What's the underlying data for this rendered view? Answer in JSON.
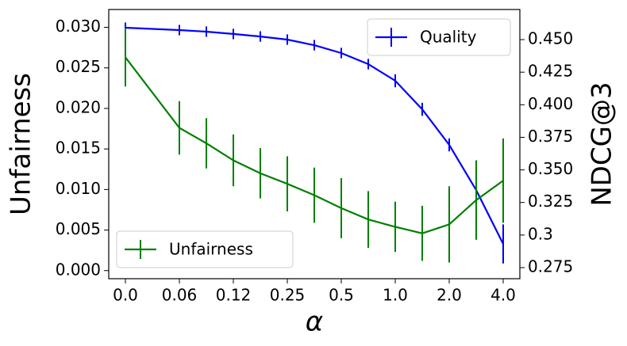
{
  "chart_data": {
    "type": "line",
    "categories": [
      "0.0",
      null,
      "0.06",
      null,
      "0.12",
      null,
      "0.25",
      null,
      "0.5",
      null,
      "1.0",
      null,
      "2.0",
      null,
      "4.0"
    ],
    "xlabel": "α",
    "ylabel": "Unfairness",
    "y2label": "NDCG@3",
    "ylim": [
      -0.001,
      0.0322
    ],
    "yticks": [
      {
        "value": 0,
        "label": "0.000"
      },
      {
        "value": 0.005,
        "label": "0.005"
      },
      {
        "value": 0.01,
        "label": "0.010"
      },
      {
        "value": 0.015,
        "label": "0.015"
      },
      {
        "value": 0.02,
        "label": "0.020"
      },
      {
        "value": 0.025,
        "label": "0.025"
      },
      {
        "value": 0.03,
        "label": "0.030"
      }
    ],
    "y2lim": [
      0.2665,
      0.4731
    ],
    "y2ticks": [
      {
        "value": 0.275,
        "label": "0.275"
      },
      0.3,
      {
        "value": 0.325,
        "label": "0.325"
      },
      {
        "value": 0.35,
        "label": "0.350"
      },
      {
        "value": 0.375,
        "label": "0.375"
      },
      {
        "value": 0.4,
        "label": "0.400"
      },
      {
        "value": 0.425,
        "label": "0.425"
      },
      {
        "value": 0.45,
        "label": "0.450"
      }
    ],
    "series": [
      {
        "name": "Quality",
        "color": "#0000ff",
        "axis": "y2",
        "legend": "upper right",
        "values": [
          0.4591,
          null,
          0.4573,
          0.4561,
          0.4543,
          0.4524,
          0.45,
          0.4457,
          0.4397,
          0.4312,
          0.4184,
          0.3965,
          0.3692,
          0.3345,
          0.2932
        ],
        "errors": [
          0.004,
          null,
          0.004,
          0.004,
          0.004,
          0.004,
          0.004,
          0.004,
          0.004,
          0.004,
          0.005,
          0.005,
          0.005,
          0.007,
          0.015
        ]
      },
      {
        "name": "Unfairness",
        "color": "#008000",
        "axis": "y",
        "legend": "lower left",
        "values": [
          0.0263,
          null,
          0.0176,
          0.0157,
          0.0136,
          0.012,
          0.0107,
          0.0093,
          0.0077,
          0.0063,
          0.0054,
          0.0046,
          0.0057,
          0.0087,
          0.0111
        ],
        "errors": [
          0.0036,
          null,
          0.0033,
          0.0031,
          0.0032,
          0.0031,
          0.0034,
          0.0034,
          0.0037,
          0.0035,
          0.0031,
          0.0034,
          0.0047,
          0.0049,
          0.0052
        ]
      }
    ]
  }
}
